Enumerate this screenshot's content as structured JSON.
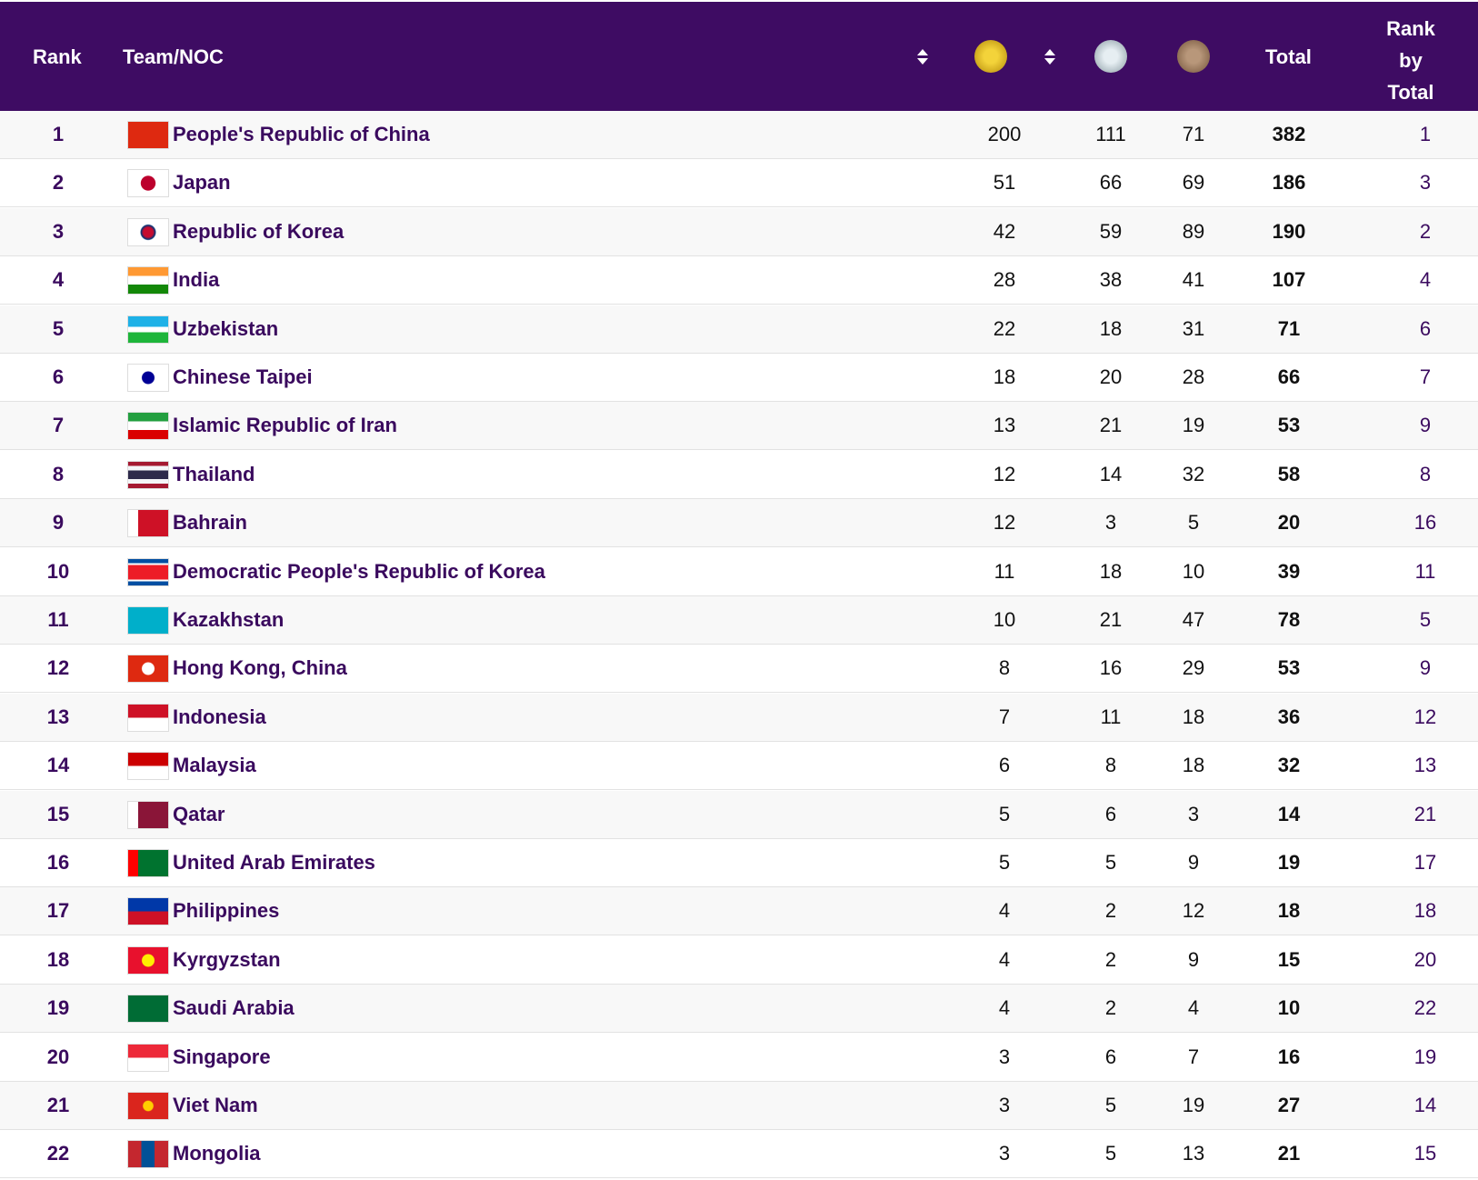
{
  "table": {
    "header": {
      "rank": "Rank",
      "team": "Team/NOC",
      "total": "Total",
      "rank_by_total": "Rank by Total"
    },
    "rows": [
      {
        "rank": "1",
        "name": "People's Republic of China",
        "gold": "200",
        "silver": "111",
        "bronze": "71",
        "total": "382",
        "rank_by_total": "1"
      },
      {
        "rank": "2",
        "name": "Japan",
        "gold": "51",
        "silver": "66",
        "bronze": "69",
        "total": "186",
        "rank_by_total": "3"
      },
      {
        "rank": "3",
        "name": "Republic of Korea",
        "gold": "42",
        "silver": "59",
        "bronze": "89",
        "total": "190",
        "rank_by_total": "2"
      },
      {
        "rank": "4",
        "name": "India",
        "gold": "28",
        "silver": "38",
        "bronze": "41",
        "total": "107",
        "rank_by_total": "4"
      },
      {
        "rank": "5",
        "name": "Uzbekistan",
        "gold": "22",
        "silver": "18",
        "bronze": "31",
        "total": "71",
        "rank_by_total": "6"
      },
      {
        "rank": "6",
        "name": "Chinese Taipei",
        "gold": "18",
        "silver": "20",
        "bronze": "28",
        "total": "66",
        "rank_by_total": "7"
      },
      {
        "rank": "7",
        "name": "Islamic Republic of Iran",
        "gold": "13",
        "silver": "21",
        "bronze": "19",
        "total": "53",
        "rank_by_total": "9"
      },
      {
        "rank": "8",
        "name": "Thailand",
        "gold": "12",
        "silver": "14",
        "bronze": "32",
        "total": "58",
        "rank_by_total": "8"
      },
      {
        "rank": "9",
        "name": "Bahrain",
        "gold": "12",
        "silver": "3",
        "bronze": "5",
        "total": "20",
        "rank_by_total": "16"
      },
      {
        "rank": "10",
        "name": "Democratic People's Republic of Korea",
        "gold": "11",
        "silver": "18",
        "bronze": "10",
        "total": "39",
        "rank_by_total": "11"
      },
      {
        "rank": "11",
        "name": "Kazakhstan",
        "gold": "10",
        "silver": "21",
        "bronze": "47",
        "total": "78",
        "rank_by_total": "5"
      },
      {
        "rank": "12",
        "name": "Hong Kong, China",
        "gold": "8",
        "silver": "16",
        "bronze": "29",
        "total": "53",
        "rank_by_total": "9"
      },
      {
        "rank": "13",
        "name": "Indonesia",
        "gold": "7",
        "silver": "11",
        "bronze": "18",
        "total": "36",
        "rank_by_total": "12"
      },
      {
        "rank": "14",
        "name": "Malaysia",
        "gold": "6",
        "silver": "8",
        "bronze": "18",
        "total": "32",
        "rank_by_total": "13"
      },
      {
        "rank": "15",
        "name": "Qatar",
        "gold": "5",
        "silver": "6",
        "bronze": "3",
        "total": "14",
        "rank_by_total": "21"
      },
      {
        "rank": "16",
        "name": "United Arab Emirates",
        "gold": "5",
        "silver": "5",
        "bronze": "9",
        "total": "19",
        "rank_by_total": "17"
      },
      {
        "rank": "17",
        "name": "Philippines",
        "gold": "4",
        "silver": "2",
        "bronze": "12",
        "total": "18",
        "rank_by_total": "18"
      },
      {
        "rank": "18",
        "name": "Kyrgyzstan",
        "gold": "4",
        "silver": "2",
        "bronze": "9",
        "total": "15",
        "rank_by_total": "20"
      },
      {
        "rank": "19",
        "name": "Saudi Arabia",
        "gold": "4",
        "silver": "2",
        "bronze": "4",
        "total": "10",
        "rank_by_total": "22"
      },
      {
        "rank": "20",
        "name": "Singapore",
        "gold": "3",
        "silver": "6",
        "bronze": "7",
        "total": "16",
        "rank_by_total": "19"
      },
      {
        "rank": "21",
        "name": "Viet Nam",
        "gold": "3",
        "silver": "5",
        "bronze": "19",
        "total": "27",
        "rank_by_total": "14"
      },
      {
        "rank": "22",
        "name": "Mongolia",
        "gold": "3",
        "silver": "5",
        "bronze": "13",
        "total": "21",
        "rank_by_total": "15"
      }
    ]
  }
}
